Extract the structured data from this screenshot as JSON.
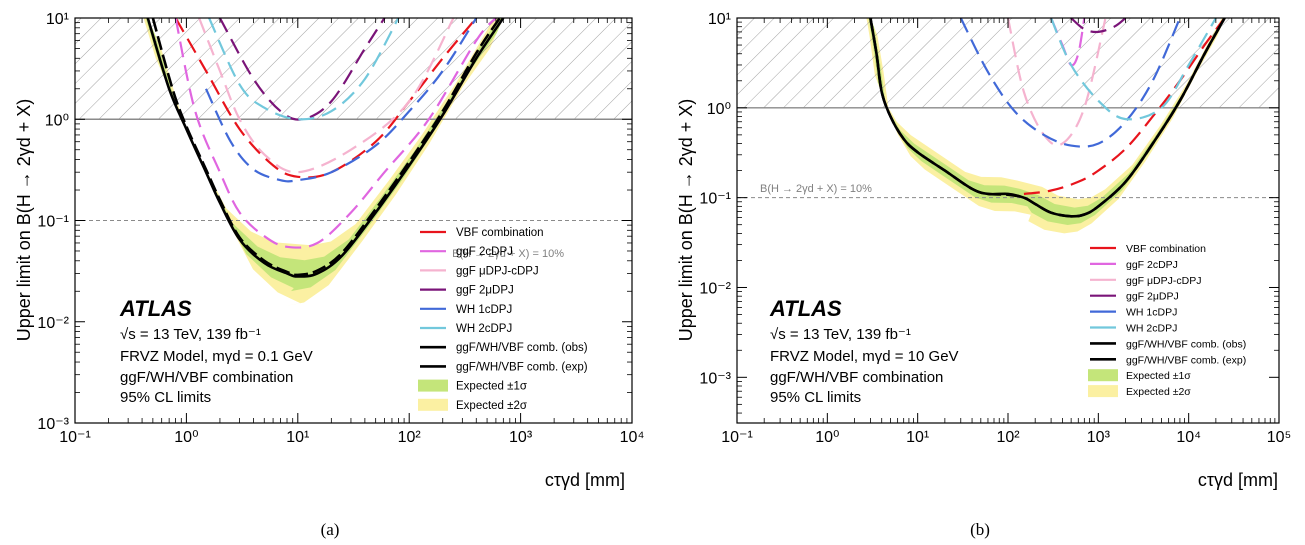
{
  "figure": {
    "caption_a": "(a)",
    "caption_b": "(b)"
  },
  "colors": {
    "vbf": "#e8141c",
    "ggf2c": "#e066e0",
    "ggfmu": "#f5b3cf",
    "ggf2mu": "#7a1478",
    "wh1c": "#4169d8",
    "wh2c": "#72c8dc",
    "obs": "#000000",
    "band1": "#c4e57a",
    "band2": "#fbf0a2"
  },
  "chart_data": [
    {
      "type": "line",
      "panel": "a",
      "xlabel": "cτγd [mm]",
      "ylabel": "Upper limit on B(H → 2γd + X)",
      "xscale": "log",
      "yscale": "log",
      "xlim": [
        0.1,
        10000
      ],
      "ylim": [
        0.001,
        10
      ],
      "xticks": [
        "10⁻¹",
        "10⁰",
        "10¹",
        "10²",
        "10³",
        "10⁴"
      ],
      "yticks": [
        "10⁻³",
        "10⁻²",
        "10⁻¹",
        "10⁰",
        "10¹"
      ],
      "hline_text": "B(H → 2γd + X) = 10%",
      "atlas": "ATLAS",
      "text_lines": [
        "√s = 13 TeV, 139 fb⁻¹",
        "FRVZ Model, mγd = 0.1 GeV",
        "ggF/WH/VBF combination",
        "95% CL limits"
      ],
      "legend_position": "lower-right",
      "series": [
        {
          "name": "VBF combination",
          "key": "vbf",
          "dash": true,
          "x": [
            0.8,
            1.5,
            3,
            6,
            10,
            20,
            50,
            100,
            200,
            400
          ],
          "y": [
            10,
            3,
            0.8,
            0.35,
            0.27,
            0.3,
            0.6,
            1.5,
            4,
            10
          ]
        },
        {
          "name": "ggF 2cDPJ",
          "key": "ggf2c",
          "dash": true,
          "x": [
            0.8,
            1.2,
            2,
            3,
            5,
            8,
            15,
            30,
            60,
            150,
            400,
            600
          ],
          "y": [
            10,
            1.2,
            0.3,
            0.12,
            0.07,
            0.055,
            0.06,
            0.12,
            0.3,
            1,
            6,
            10
          ]
        },
        {
          "name": "ggF μDPJ-cDPJ",
          "key": "ggfmu",
          "dash": true,
          "x": [
            1.3,
            2,
            3,
            5,
            10,
            30,
            100,
            250
          ],
          "y": [
            10,
            3,
            1,
            0.45,
            0.3,
            0.5,
            1.5,
            10
          ]
        },
        {
          "name": "ggF 2μDPJ",
          "key": "ggf2mu",
          "dash": true,
          "x": [
            2,
            4,
            7,
            11,
            20,
            40,
            60
          ],
          "y": [
            10,
            2.5,
            1.2,
            1,
            1.5,
            5,
            10
          ]
        },
        {
          "name": "WH 1cDPJ",
          "key": "wh1c",
          "dash": true,
          "x": [
            1.5,
            2.5,
            4,
            7,
            10,
            20,
            50,
            100,
            200,
            400
          ],
          "y": [
            2,
            0.6,
            0.32,
            0.25,
            0.25,
            0.3,
            0.55,
            1.2,
            3,
            10
          ]
        },
        {
          "name": "WH 2cDPJ",
          "key": "wh2c",
          "dash": true,
          "x": [
            1.6,
            3,
            5,
            10,
            20,
            40,
            80
          ],
          "y": [
            10,
            2.2,
            1.3,
            1,
            1.2,
            2.5,
            10
          ]
        },
        {
          "name": "ggF/WH/VBF comb. (obs)",
          "key": "obs",
          "dash": false,
          "x": [
            0.45,
            0.7,
            1,
            1.5,
            2,
            3,
            5,
            8,
            10,
            15,
            25,
            50,
            100,
            200,
            400,
            700
          ],
          "y": [
            10,
            2,
            0.8,
            0.3,
            0.15,
            0.065,
            0.038,
            0.03,
            0.028,
            0.03,
            0.045,
            0.12,
            0.35,
            1.1,
            4,
            10
          ]
        },
        {
          "name": "ggF/WH/VBF comb. (exp)",
          "key": "obs",
          "dash": true,
          "x": [
            0.5,
            0.75,
            1,
            1.5,
            2,
            3,
            5,
            8,
            10,
            15,
            25,
            50,
            100,
            200,
            400,
            650
          ],
          "y": [
            10,
            2,
            0.85,
            0.32,
            0.16,
            0.068,
            0.04,
            0.031,
            0.029,
            0.032,
            0.048,
            0.13,
            0.38,
            1.2,
            4.5,
            10
          ]
        }
      ],
      "band_center": {
        "x": [
          0.45,
          0.7,
          1,
          1.5,
          2,
          3,
          5,
          8,
          10,
          15,
          25,
          50,
          100,
          200,
          400,
          700
        ],
        "y": [
          10,
          2,
          0.82,
          0.31,
          0.155,
          0.066,
          0.039,
          0.0305,
          0.0285,
          0.031,
          0.046,
          0.125,
          0.36,
          1.15,
          4.2,
          10
        ]
      },
      "bands": [
        {
          "name": "Expected ±2σ",
          "key": "band2",
          "factor": 2.0
        },
        {
          "name": "Expected ±1σ",
          "key": "band1",
          "factor": 1.42
        }
      ]
    },
    {
      "type": "line",
      "panel": "b",
      "xlabel": "cτγd [mm]",
      "ylabel": "Upper limit on B(H → 2γd + X)",
      "xscale": "log",
      "yscale": "log",
      "xlim": [
        0.1,
        100000
      ],
      "ylim": [
        0.0001,
        10
      ],
      "xticks": [
        "10⁻¹",
        "10⁰",
        "10¹",
        "10²",
        "10³",
        "10⁴",
        "10⁵"
      ],
      "yticks": [
        "10⁻³",
        "10⁻²",
        "10⁻¹",
        "10⁰",
        "10¹"
      ],
      "hline_text": "B(H → 2γd + X) = 10%",
      "atlas": "ATLAS",
      "text_lines": [
        "√s = 13 TeV, 139 fb⁻¹",
        "FRVZ Model, mγd = 10 GeV",
        "ggF/WH/VBF combination",
        "95% CL limits"
      ],
      "legend_position": "lower-right",
      "series": [
        {
          "name": "VBF combination",
          "key": "vbf",
          "dash": true,
          "x": [
            150,
            300,
            600,
            1000,
            2000,
            4000,
            8000,
            15000,
            25000
          ],
          "y": [
            0.11,
            0.12,
            0.15,
            0.2,
            0.35,
            0.8,
            2,
            5,
            10
          ]
        },
        {
          "name": "ggF 2cDPJ",
          "key": "ggf2c",
          "dash": true,
          "x": [
            300,
            400,
            500,
            600,
            700
          ],
          "y": [
            10,
            5,
            3,
            4,
            10
          ]
        },
        {
          "name": "ggF μDPJ-cDPJ",
          "key": "ggfmu",
          "dash": true,
          "x": [
            100,
            150,
            250,
            400,
            700,
            1200
          ],
          "y": [
            10,
            1.5,
            0.5,
            0.4,
            1,
            10
          ]
        },
        {
          "name": "ggF 2μDPJ",
          "key": "ggf2mu",
          "dash": true,
          "x": [
            500,
            700,
            1000,
            1500,
            2000
          ],
          "y": [
            10,
            7.5,
            7,
            8,
            10
          ]
        },
        {
          "name": "WH 1cDPJ",
          "key": "wh1c",
          "dash": true,
          "x": [
            30,
            60,
            120,
            250,
            500,
            1000,
            2000,
            4000,
            8000
          ],
          "y": [
            10,
            2.5,
            0.9,
            0.5,
            0.38,
            0.4,
            0.7,
            2,
            10
          ]
        },
        {
          "name": "WH 2cDPJ",
          "key": "wh2c",
          "dash": true,
          "x": [
            300,
            500,
            1000,
            2000,
            5000,
            10000,
            20000
          ],
          "y": [
            10,
            3,
            1.2,
            0.75,
            1,
            3,
            10
          ]
        },
        {
          "name": "ggF/WH/VBF comb. (obs)",
          "key": "obs",
          "dash": false,
          "x": [
            3,
            3.5,
            4,
            5,
            7,
            10,
            20,
            40,
            60,
            100,
            150,
            200,
            300,
            500,
            700,
            1000,
            2000,
            4000,
            8000,
            15000,
            25000
          ],
          "y": [
            10,
            4,
            1.5,
            0.8,
            0.45,
            0.32,
            0.2,
            0.125,
            0.11,
            0.11,
            0.1,
            0.085,
            0.068,
            0.062,
            0.065,
            0.08,
            0.15,
            0.4,
            1.2,
            4,
            10
          ]
        },
        {
          "name": "ggF/WH/VBF comb. (exp)",
          "key": "obs",
          "dash": true,
          "x": [
            3,
            3.5,
            4,
            5,
            7,
            10,
            20,
            40,
            60,
            100,
            150,
            200,
            300,
            500,
            700,
            1000,
            2000,
            4000,
            8000,
            15000,
            25000
          ],
          "y": [
            10,
            4,
            1.5,
            0.8,
            0.45,
            0.32,
            0.2,
            0.125,
            0.11,
            0.108,
            0.1,
            0.085,
            0.068,
            0.062,
            0.065,
            0.08,
            0.15,
            0.4,
            1.2,
            4,
            10
          ]
        }
      ],
      "band_center": {
        "x": [
          3,
          3.5,
          4,
          5,
          7,
          10,
          20,
          40,
          60,
          100,
          150,
          200,
          300,
          500,
          700,
          1000,
          2000,
          4000,
          8000,
          15000,
          25000
        ],
        "y": [
          10,
          4,
          1.5,
          0.8,
          0.45,
          0.32,
          0.2,
          0.125,
          0.11,
          0.109,
          0.1,
          0.085,
          0.068,
          0.062,
          0.065,
          0.08,
          0.15,
          0.4,
          1.2,
          4,
          10
        ]
      },
      "bands": [
        {
          "name": "Expected ±2σ",
          "key": "band2",
          "factor": 1.55
        },
        {
          "name": "Expected ±1σ",
          "key": "band1",
          "factor": 1.25
        }
      ]
    }
  ]
}
